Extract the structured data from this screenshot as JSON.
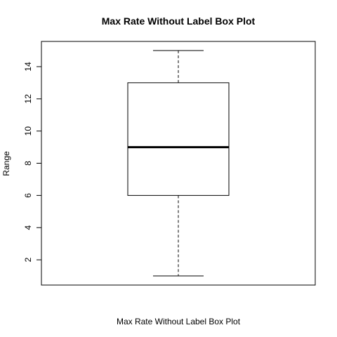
{
  "chart_data": {
    "type": "box",
    "title": "Max Rate Without Label Box Plot",
    "xlabel": "Max Rate Without Label Box Plot",
    "ylabel": "Range",
    "ylim": [
      1,
      15
    ],
    "yticks": [
      2,
      4,
      6,
      8,
      10,
      12,
      14
    ],
    "ytick_labels": [
      "2",
      "4",
      "6",
      "8",
      "10",
      "12",
      "14"
    ],
    "series": [
      {
        "min": 1,
        "q1": 6,
        "median": 9,
        "q3": 13,
        "max": 15
      }
    ],
    "grid": false,
    "legend": "none"
  }
}
